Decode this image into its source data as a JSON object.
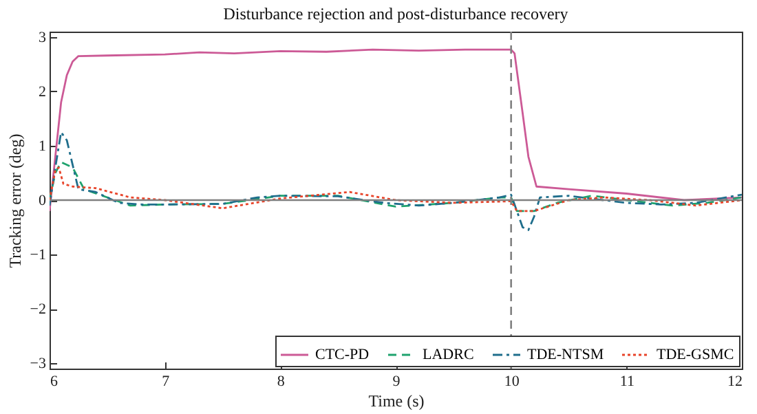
{
  "chart_data": {
    "type": "line",
    "title": "Disturbance rejection and post-disturbance recovery",
    "xlabel": "Time (s)",
    "ylabel": "Tracking error (deg)",
    "xlim": [
      6,
      12
    ],
    "xticks": [
      6,
      7,
      8,
      9,
      10,
      11,
      12
    ],
    "ylim": [
      -3.1,
      3.1
    ],
    "yticks": [
      -3,
      -2,
      -1,
      0,
      1,
      2,
      3
    ],
    "grid": false,
    "legend": "bottom",
    "ref_lines": [
      {
        "axis": "x",
        "value": 10,
        "color": "#808080",
        "line_style": "dashed"
      },
      {
        "axis": "y",
        "value": 0,
        "color": "#808080",
        "line_style": "solid"
      }
    ],
    "series": [
      {
        "name": "CTC-PD",
        "color": "#cc5a96",
        "line_style": "solid",
        "x": [
          6,
          6.05,
          6.1,
          6.15,
          6.2,
          6.25,
          6.5,
          7,
          7.3,
          7.6,
          8,
          8.4,
          8.8,
          9.2,
          9.6,
          10,
          10.03,
          10.1,
          10.15,
          10.22,
          10.5,
          11,
          11.5,
          12
        ],
        "values": [
          -0.2,
          0.8,
          1.8,
          2.3,
          2.55,
          2.65,
          2.66,
          2.68,
          2.72,
          2.7,
          2.74,
          2.73,
          2.77,
          2.75,
          2.77,
          2.77,
          2.7,
          1.6,
          0.8,
          0.25,
          0.2,
          0.12,
          0,
          0.05
        ]
      },
      {
        "name": "LADRC",
        "color": "#1fa36e",
        "line_style": "dashed",
        "x": [
          6,
          6.05,
          6.1,
          6.2,
          6.3,
          6.5,
          6.7,
          7,
          7.5,
          8,
          8.5,
          9,
          9.5,
          9.9,
          10,
          10.05,
          10.2,
          10.4,
          10.7,
          11,
          11.4,
          11.7,
          12
        ],
        "values": [
          0,
          0.5,
          0.7,
          0.6,
          0.2,
          0.05,
          -0.1,
          -0.08,
          -0.07,
          0.08,
          0.08,
          -0.12,
          -0.05,
          0.05,
          0.05,
          -0.2,
          -0.2,
          -0.05,
          0.08,
          0,
          -0.1,
          -0.05,
          0.05
        ]
      },
      {
        "name": "TDE-NTSM",
        "color": "#1f6e8c",
        "line_style": "dashdot",
        "x": [
          6,
          6.05,
          6.1,
          6.15,
          6.25,
          6.4,
          6.6,
          6.8,
          7,
          7.5,
          7.8,
          8,
          8.5,
          8.9,
          9.2,
          9.5,
          9.9,
          10,
          10.05,
          10.1,
          10.15,
          10.2,
          10.25,
          10.5,
          10.8,
          11,
          11.3,
          11.6,
          12
        ],
        "values": [
          -0.1,
          0.6,
          1.25,
          1.1,
          0.2,
          0.15,
          -0.05,
          -0.08,
          -0.08,
          -0.07,
          0.05,
          0.08,
          0.07,
          -0.05,
          -0.1,
          -0.05,
          0.05,
          0.1,
          -0.2,
          -0.5,
          -0.55,
          -0.3,
          0.05,
          0.08,
          0,
          -0.05,
          -0.08,
          -0.05,
          0.1
        ]
      },
      {
        "name": "TDE-GSMC",
        "color": "#e8442a",
        "line_style": "dotted",
        "x": [
          6,
          6.05,
          6.08,
          6.12,
          6.2,
          6.4,
          6.7,
          7,
          7.5,
          8,
          8.6,
          9,
          9.5,
          10,
          10.05,
          10.2,
          10.5,
          10.8,
          11.2,
          11.6,
          12
        ],
        "values": [
          0,
          0.55,
          0.6,
          0.3,
          0.25,
          0.22,
          0.05,
          0,
          -0.15,
          0.03,
          0.15,
          0,
          -0.05,
          -0.02,
          -0.2,
          -0.2,
          0,
          0.05,
          0,
          -0.1,
          0
        ]
      }
    ]
  }
}
